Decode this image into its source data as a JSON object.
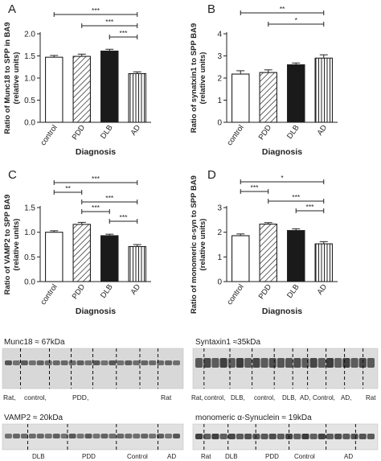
{
  "chart_data": [
    {
      "panel_letter": "A",
      "type": "bar",
      "ylabel": "Ratio of Munc18 to SPP in BA9",
      "ylabel_sub": "(relative units)",
      "xlabel": "Diagnosis",
      "ylim": [
        0,
        2.0
      ],
      "yticks": [
        "0.0",
        "0.5",
        "1.0",
        "1.5",
        "2.0"
      ],
      "categories": [
        "control",
        "PDD",
        "DLB",
        "AD"
      ],
      "values": [
        1.47,
        1.49,
        1.61,
        1.1
      ],
      "errors": [
        0.04,
        0.05,
        0.04,
        0.04
      ],
      "significance": [
        {
          "from": 0,
          "to": 3,
          "label": "***"
        },
        {
          "from": 1,
          "to": 3,
          "label": "***"
        },
        {
          "from": 2,
          "to": 3,
          "label": "***"
        }
      ]
    },
    {
      "panel_letter": "B",
      "type": "bar",
      "ylabel": "Ratio of synatxin1 to SPP BA9",
      "ylabel_sub": "(relative units)",
      "xlabel": "Diagnosis",
      "ylim": [
        0,
        4
      ],
      "yticks": [
        "0",
        "1",
        "2",
        "3",
        "4"
      ],
      "categories": [
        "control",
        "PDD",
        "DLB",
        "AD"
      ],
      "values": [
        2.18,
        2.25,
        2.6,
        2.9
      ],
      "errors": [
        0.15,
        0.12,
        0.08,
        0.15
      ],
      "significance": [
        {
          "from": 0,
          "to": 3,
          "label": "**"
        },
        {
          "from": 1,
          "to": 3,
          "label": "*"
        }
      ]
    },
    {
      "panel_letter": "C",
      "type": "bar",
      "ylabel": "Ratio of VAMP2 to SPP BA9",
      "ylabel_sub": "(relative units)",
      "xlabel": "Diagnosis",
      "ylim": [
        0,
        1.5
      ],
      "yticks": [
        "0.0",
        "0.5",
        "1.0",
        "1.5"
      ],
      "categories": [
        "control",
        "PDD",
        "DLB",
        "AD"
      ],
      "values": [
        1.0,
        1.16,
        0.93,
        0.71
      ],
      "errors": [
        0.03,
        0.04,
        0.03,
        0.04
      ],
      "significance": [
        {
          "from": 0,
          "to": 3,
          "label": "***"
        },
        {
          "from": 0,
          "to": 1,
          "label": "**"
        },
        {
          "from": 1,
          "to": 3,
          "label": "***"
        },
        {
          "from": 1,
          "to": 2,
          "label": "***"
        },
        {
          "from": 2,
          "to": 3,
          "label": "***"
        }
      ]
    },
    {
      "panel_letter": "D",
      "type": "bar",
      "ylabel": "Ratio of monomeric α-syn to SPP BA9",
      "ylabel_sub": "(relative units)",
      "xlabel": "Diagnosis",
      "ylim": [
        0,
        3
      ],
      "yticks": [
        "0",
        "1",
        "2",
        "3"
      ],
      "categories": [
        "control",
        "PDD",
        "DLB",
        "AD"
      ],
      "values": [
        1.86,
        2.33,
        2.07,
        1.53
      ],
      "errors": [
        0.07,
        0.06,
        0.07,
        0.09
      ],
      "significance": [
        {
          "from": 0,
          "to": 3,
          "label": "*"
        },
        {
          "from": 0,
          "to": 1,
          "label": "***"
        },
        {
          "from": 1,
          "to": 3,
          "label": "***"
        },
        {
          "from": 2,
          "to": 3,
          "label": "***"
        }
      ]
    }
  ],
  "blots": [
    {
      "title": "Munc18 ≈ 67kDa",
      "lane_labels": [
        "Rat,",
        "control,",
        "PDD,",
        "Rat"
      ]
    },
    {
      "title": "Syntaxin1 ≈35kDa",
      "lane_labels": [
        "Rat,",
        "control,",
        "DLB,",
        "control,",
        "DLB,",
        "AD,",
        "Control,",
        "AD,",
        "Rat"
      ]
    },
    {
      "title": "VAMP2 ≈ 20kDa",
      "lane_labels": [
        "DLB",
        "PDD",
        "Control",
        "AD"
      ]
    },
    {
      "title": "monomeric  α-Synuclein ≈ 19kDa",
      "lane_labels": [
        "Rat",
        "DLB",
        "PDD",
        "Control",
        "AD"
      ]
    }
  ],
  "colors": {
    "control": "#ffffff",
    "PDD": "#ffffff",
    "DLB": "#1a1a1a",
    "AD": "#ffffff",
    "axis": "#222222"
  },
  "bar_patterns": [
    "none",
    "diagonal-hatch",
    "solid",
    "vertical-lines"
  ]
}
